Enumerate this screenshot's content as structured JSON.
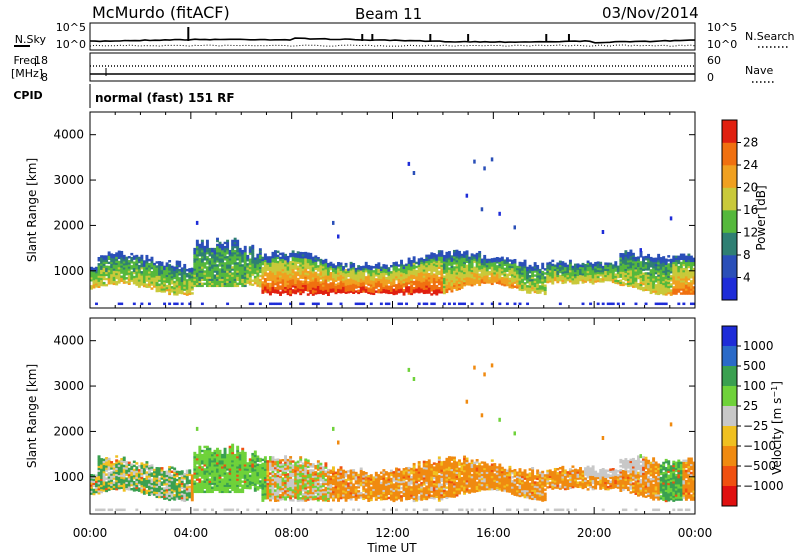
{
  "header": {
    "station": "McMurdo (fitACF)",
    "beam": "Beam 11",
    "date": "03/Nov/2014"
  },
  "status_panels": {
    "nsky_label": "N.Sky",
    "nsearch_label": "N.Search",
    "noise_ticks_left": [
      "10^5",
      "10^0"
    ],
    "noise_ticks_right": [
      "10^5",
      "10^0"
    ],
    "freq_label_1": "Freq.",
    "freq_label_2": "[MHz]",
    "freq_ticks": [
      "18",
      "8"
    ],
    "nave_ticks": [
      "60",
      "0"
    ],
    "nave_label": "Nave",
    "cpid_label": "CPID",
    "cpid_text": "normal (fast) 151 RF"
  },
  "chart_data": [
    {
      "type": "heatmap",
      "panel": "power",
      "ylabel": "Slant Range [km]",
      "xlabel": "",
      "ylim": [
        180,
        4500
      ],
      "yticks": [
        "1000",
        "2000",
        "3000",
        "4000"
      ],
      "colorbar_label": "Power [dB]",
      "colorbar_ticks": [
        "4",
        "8",
        "12",
        "16",
        "20",
        "24",
        "28"
      ],
      "colorbar_colors": [
        "#1e2cd8",
        "#2a4fb8",
        "#2f7f73",
        "#55b83c",
        "#c9c93a",
        "#f0a020",
        "#f07010",
        "#e02010"
      ],
      "value_range": [
        0,
        30
      ],
      "description_rows": [
        {
          "time_h": [
            0,
            2.5
          ],
          "range_km": [
            700,
            1150
          ],
          "level": 12
        },
        {
          "time_h": [
            2.5,
            3.5
          ],
          "range_km": [
            720,
            1350
          ],
          "level": 14
        },
        {
          "time_h": [
            4.0,
            6.0
          ],
          "range_km": [
            680,
            1650
          ],
          "level": 10
        },
        {
          "time_h": [
            6.5,
            10.0
          ],
          "range_km": [
            500,
            1300
          ],
          "level": 26
        },
        {
          "time_h": [
            10.0,
            14.0
          ],
          "range_km": [
            500,
            1300
          ],
          "level": 28
        },
        {
          "time_h": [
            14.0,
            17.0
          ],
          "range_km": [
            650,
            1300
          ],
          "level": 22
        },
        {
          "time_h": [
            17.0,
            21.0
          ],
          "range_km": [
            650,
            1250
          ],
          "level": 14
        },
        {
          "time_h": [
            21.0,
            24.0
          ],
          "range_km": [
            500,
            1300
          ],
          "level": 20
        }
      ]
    },
    {
      "type": "heatmap",
      "panel": "velocity",
      "ylabel": "Slant Range [km]",
      "xlabel": "Time UT",
      "ylim": [
        180,
        4500
      ],
      "yticks": [
        "1000",
        "2000",
        "3000",
        "4000"
      ],
      "xticks": [
        "00:00",
        "04:00",
        "08:00",
        "12:00",
        "16:00",
        "20:00",
        "00:00"
      ],
      "colorbar_label": "Velocity [m s^-1]",
      "colorbar_ticks": [
        "1000",
        "500",
        "100",
        "25",
        "−25",
        "−100",
        "−500",
        "−1000"
      ],
      "colorbar_colors": [
        "#1e2cd8",
        "#2a6ac8",
        "#3aa050",
        "#6fd23a",
        "#c8c8c8",
        "#f0c020",
        "#f08a10",
        "#f05010",
        "#e01010"
      ],
      "value_range": [
        -1000,
        1000
      ]
    }
  ]
}
